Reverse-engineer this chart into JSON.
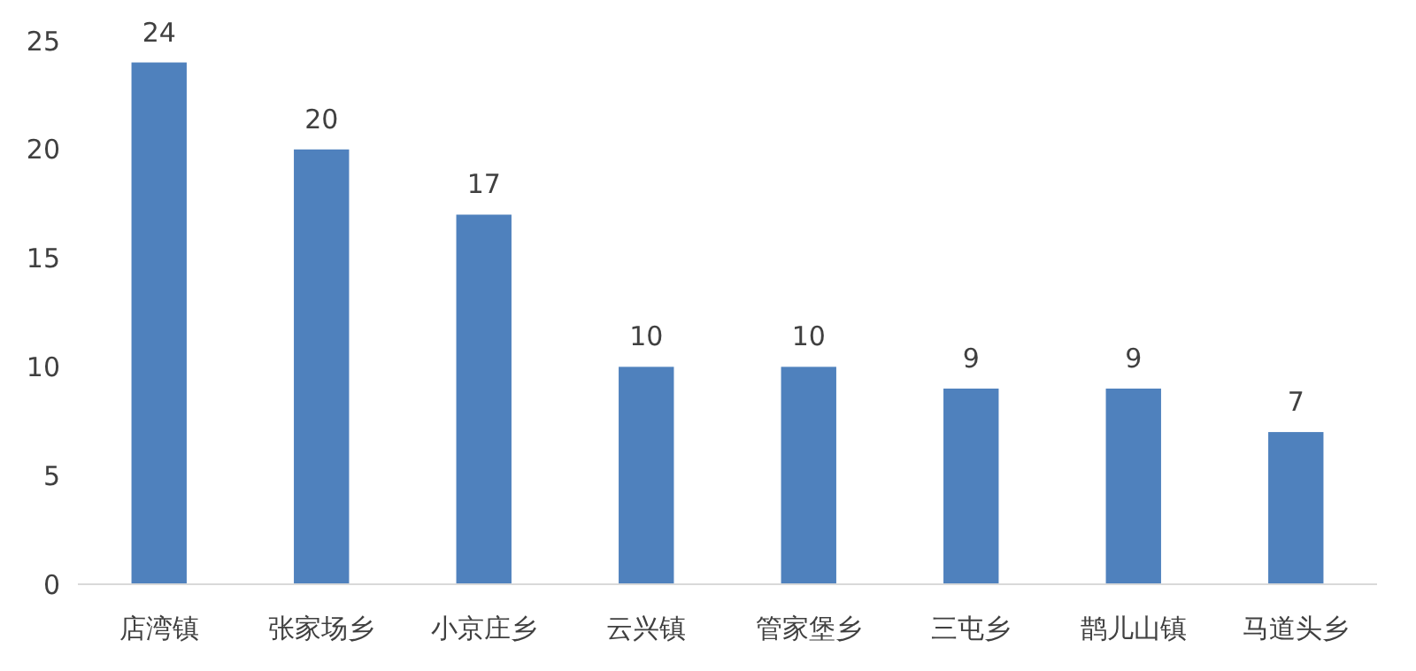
{
  "chart_data": {
    "type": "bar",
    "categories": [
      "店湾镇",
      "张家场乡",
      "小京庄乡",
      "云兴镇",
      "管家堡乡",
      "三屯乡",
      "鹊儿山镇",
      "马道头乡"
    ],
    "values": [
      24,
      20,
      17,
      10,
      10,
      9,
      9,
      7
    ],
    "color": "#4f81bd",
    "ylim": [
      0,
      25
    ],
    "yticks": [
      0,
      5,
      10,
      15,
      20,
      25
    ],
    "data_labels": true,
    "grid": false
  }
}
